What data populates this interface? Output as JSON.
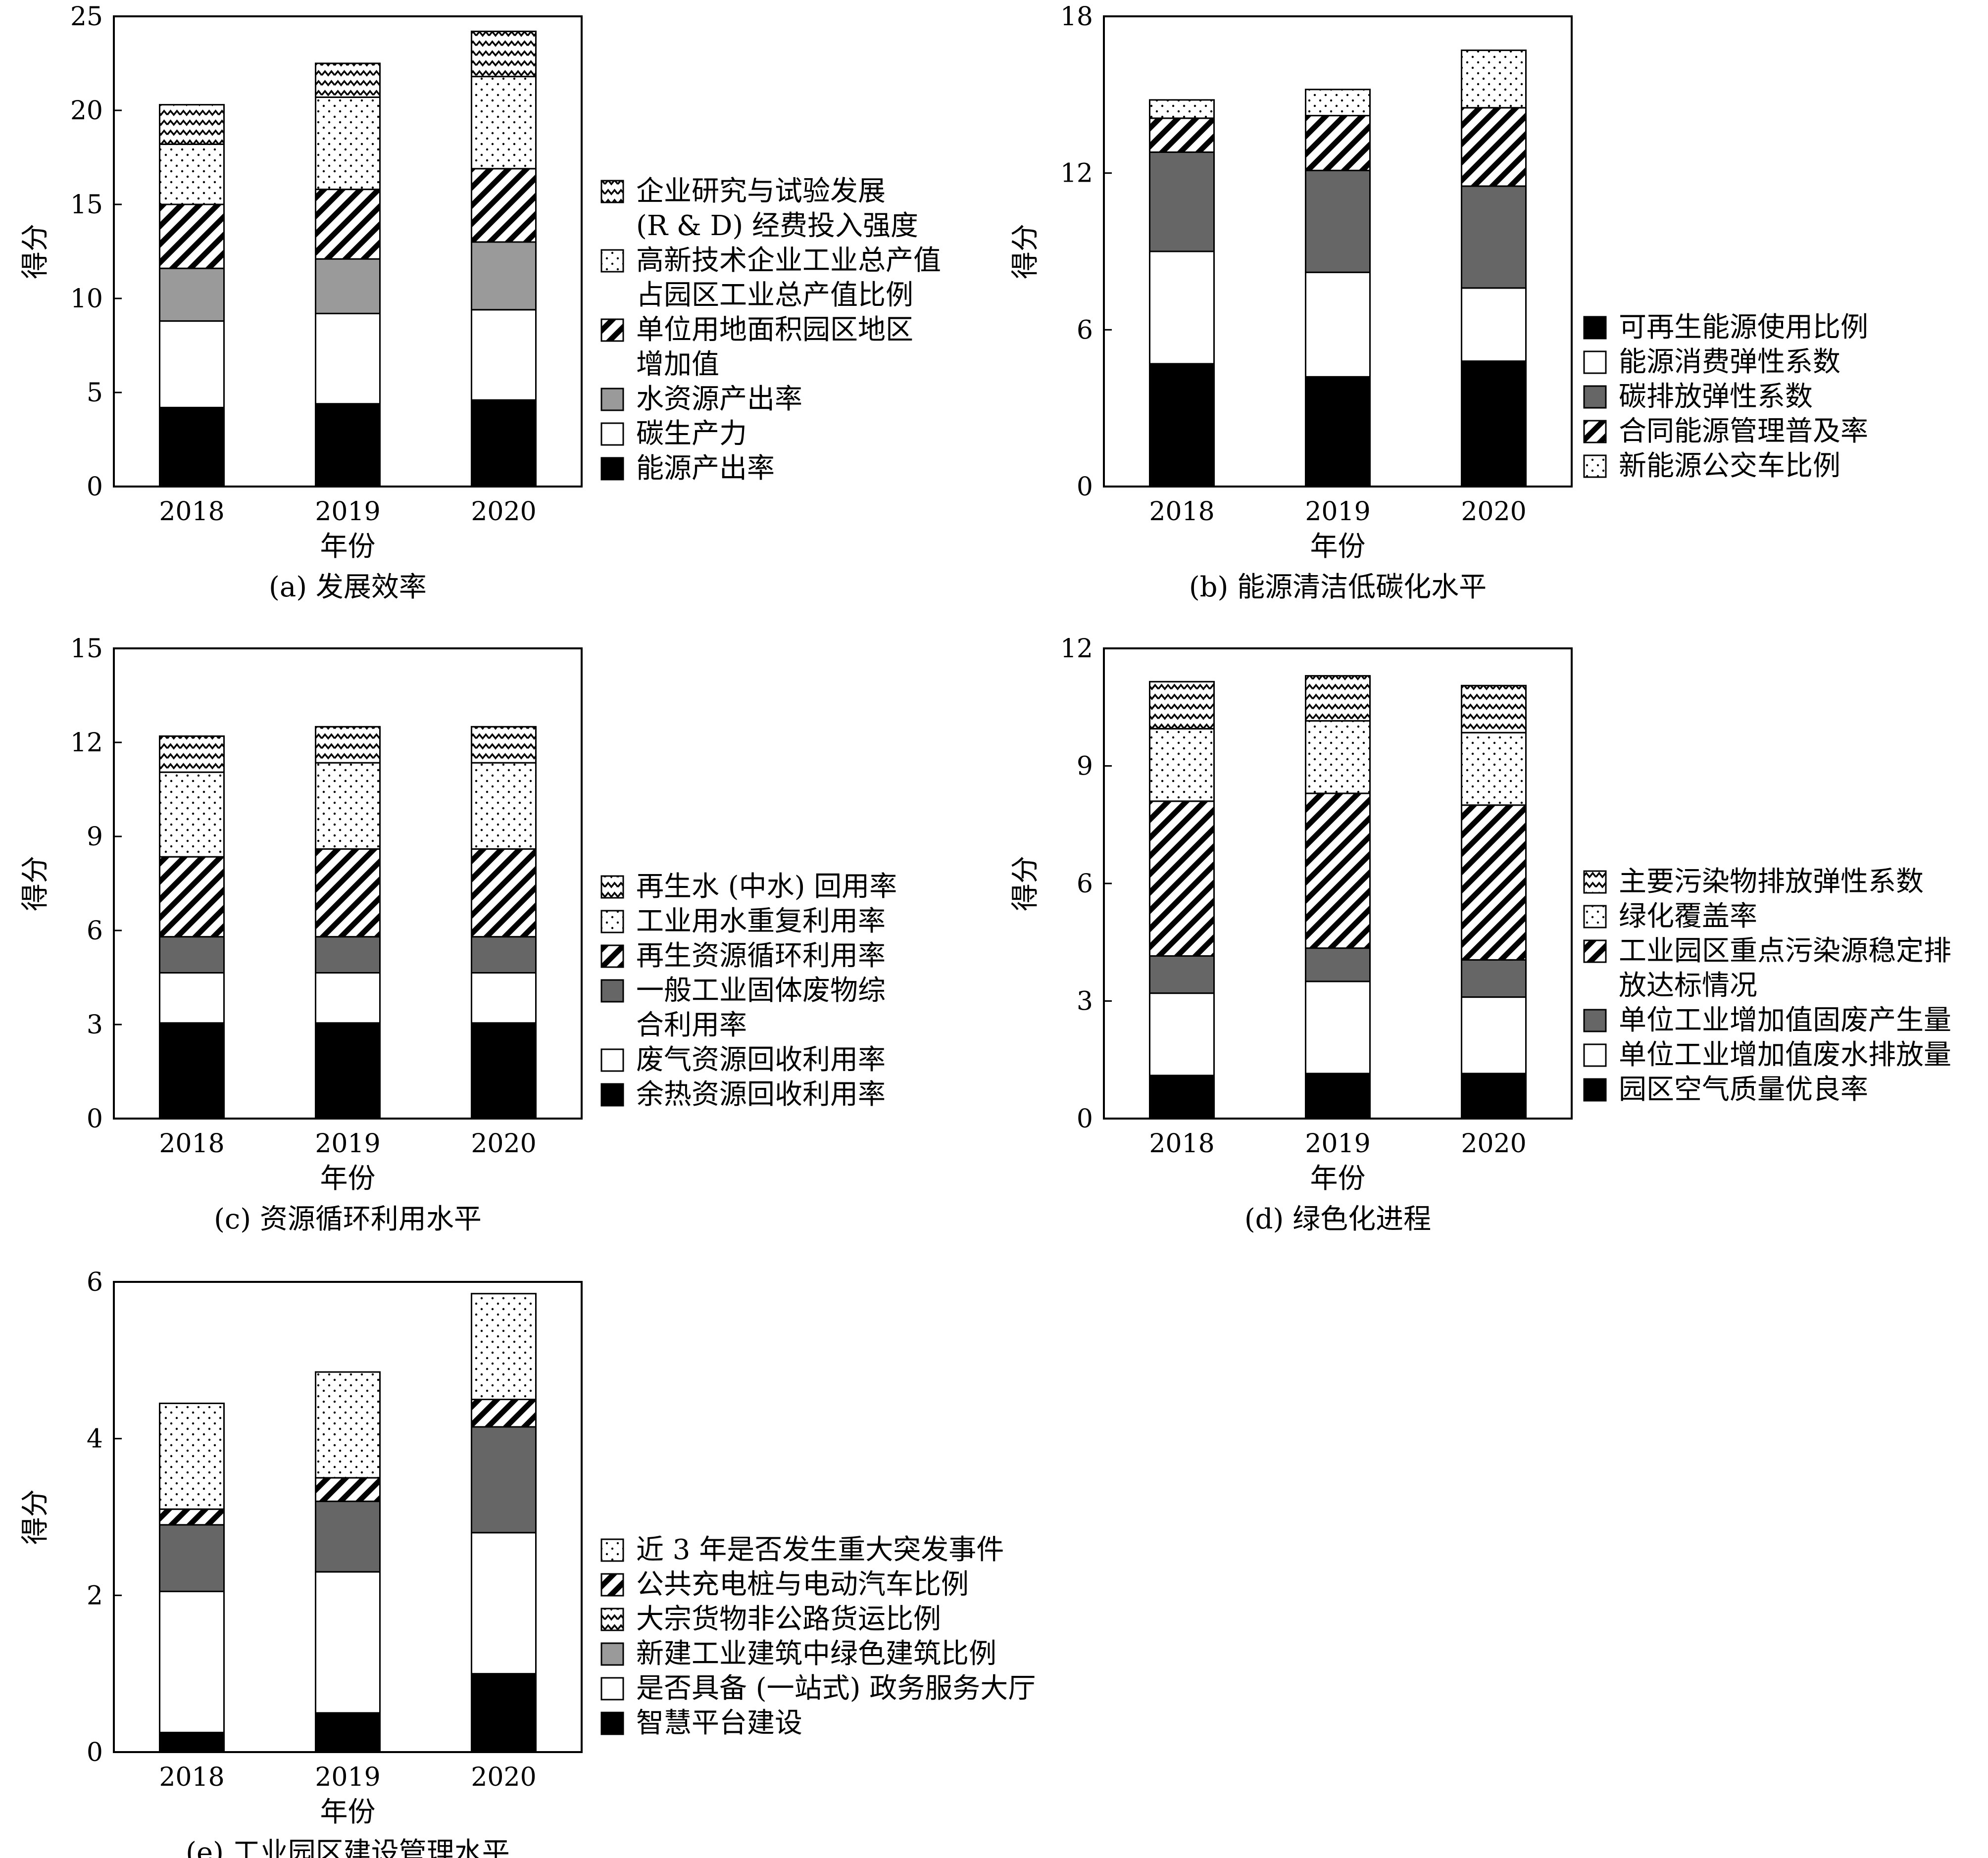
{
  "chart_data": [
    {
      "type": "bar",
      "stacked": true,
      "caption": "(a) 发展效率",
      "xlabel": "年份",
      "ylabel": "得分",
      "ylim": [
        0,
        25
      ],
      "yticks": [
        0,
        5,
        10,
        15,
        20,
        25
      ],
      "categories": [
        "2018",
        "2019",
        "2020"
      ],
      "series": [
        {
          "name": "能源产出率",
          "pattern": "solid-black",
          "values": [
            4.2,
            4.4,
            4.6
          ]
        },
        {
          "name": "碳生产力",
          "pattern": "white",
          "values": [
            4.6,
            4.8,
            4.8
          ]
        },
        {
          "name": "水资源产出率",
          "pattern": "gray",
          "values": [
            2.8,
            2.9,
            3.6
          ]
        },
        {
          "name": "单位用地面积园区地区增加值",
          "pattern": "diagonal",
          "values": [
            3.4,
            3.7,
            3.9
          ]
        },
        {
          "name": "高新技术企业工业总产值占园区工业总产值比例",
          "pattern": "dots",
          "values": [
            3.2,
            4.9,
            4.9
          ]
        },
        {
          "name": "企业研究与试验发展(R & D) 经费投入强度",
          "pattern": "zigzag",
          "values": [
            2.1,
            1.8,
            2.4
          ]
        }
      ],
      "legend_lines": [
        {
          "series": 5,
          "lines": [
            "企业研究与试验发展",
            "(R & D) 经费投入强度"
          ]
        },
        {
          "series": 4,
          "lines": [
            "高新技术企业工业总产值",
            "占园区工业总产值比例"
          ]
        },
        {
          "series": 3,
          "lines": [
            "单位用地面积园区地区",
            "增加值"
          ]
        },
        {
          "series": 2,
          "lines": [
            "水资源产出率"
          ]
        },
        {
          "series": 1,
          "lines": [
            "碳生产力"
          ]
        },
        {
          "series": 0,
          "lines": [
            "能源产出率"
          ]
        }
      ]
    },
    {
      "type": "bar",
      "stacked": true,
      "caption": "(b) 能源清洁低碳化水平",
      "xlabel": "年份",
      "ylabel": "得分",
      "ylim": [
        0,
        18
      ],
      "yticks": [
        0,
        6,
        12,
        18
      ],
      "categories": [
        "2018",
        "2019",
        "2020"
      ],
      "series": [
        {
          "name": "可再生能源使用比例",
          "pattern": "solid-black",
          "values": [
            4.7,
            4.2,
            4.8
          ]
        },
        {
          "name": "能源消费弹性系数",
          "pattern": "white",
          "values": [
            4.3,
            4.0,
            2.8
          ]
        },
        {
          "name": "碳排放弹性系数",
          "pattern": "darkgray",
          "values": [
            3.8,
            3.9,
            3.9
          ]
        },
        {
          "name": "合同能源管理普及率",
          "pattern": "diagonal",
          "values": [
            1.3,
            2.1,
            3.0
          ]
        },
        {
          "name": "新能源公交车比例",
          "pattern": "dots",
          "values": [
            0.7,
            1.0,
            2.2
          ]
        }
      ],
      "legend_lines": [
        {
          "series": 0,
          "lines": [
            "可再生能源使用比例"
          ]
        },
        {
          "series": 1,
          "lines": [
            "能源消费弹性系数"
          ]
        },
        {
          "series": 2,
          "lines": [
            "碳排放弹性系数"
          ]
        },
        {
          "series": 3,
          "lines": [
            "合同能源管理普及率"
          ]
        },
        {
          "series": 4,
          "lines": [
            "新能源公交车比例"
          ]
        }
      ]
    },
    {
      "type": "bar",
      "stacked": true,
      "caption": "(c) 资源循环利用水平",
      "xlabel": "年份",
      "ylabel": "得分",
      "ylim": [
        0,
        15
      ],
      "yticks": [
        0,
        3,
        6,
        9,
        12,
        15
      ],
      "categories": [
        "2018",
        "2019",
        "2020"
      ],
      "series": [
        {
          "name": "余热资源回收利用率",
          "pattern": "solid-black",
          "values": [
            3.05,
            3.05,
            3.05
          ]
        },
        {
          "name": "废气资源回收利用率",
          "pattern": "white",
          "values": [
            1.6,
            1.6,
            1.6
          ]
        },
        {
          "name": "一般工业固体废物综合利用率",
          "pattern": "darkgray",
          "values": [
            1.15,
            1.15,
            1.15
          ]
        },
        {
          "name": "再生资源循环利用率",
          "pattern": "diagonal",
          "values": [
            2.55,
            2.8,
            2.8
          ]
        },
        {
          "name": "工业用水重复利用率",
          "pattern": "dots",
          "values": [
            2.7,
            2.75,
            2.75
          ]
        },
        {
          "name": "再生水 (中水) 回用率",
          "pattern": "zigzag",
          "values": [
            1.15,
            1.15,
            1.15
          ]
        }
      ],
      "legend_lines": [
        {
          "series": 5,
          "lines": [
            "再生水 (中水) 回用率"
          ]
        },
        {
          "series": 4,
          "lines": [
            "工业用水重复利用率"
          ]
        },
        {
          "series": 3,
          "lines": [
            "再生资源循环利用率"
          ]
        },
        {
          "series": 2,
          "lines": [
            "一般工业固体废物综",
            "合利用率"
          ]
        },
        {
          "series": 1,
          "lines": [
            "废气资源回收利用率"
          ]
        },
        {
          "series": 0,
          "lines": [
            "余热资源回收利用率"
          ]
        }
      ]
    },
    {
      "type": "bar",
      "stacked": true,
      "caption": "(d) 绿色化进程",
      "xlabel": "年份",
      "ylabel": "得分",
      "ylim": [
        0,
        12
      ],
      "yticks": [
        0,
        3,
        6,
        9,
        12
      ],
      "categories": [
        "2018",
        "2019",
        "2020"
      ],
      "series": [
        {
          "name": "园区空气质量优良率",
          "pattern": "solid-black",
          "values": [
            1.1,
            1.15,
            1.15
          ]
        },
        {
          "name": "单位工业增加值废水排放量",
          "pattern": "white",
          "values": [
            2.1,
            2.35,
            1.95
          ]
        },
        {
          "name": "单位工业增加值固废产生量",
          "pattern": "darkgray",
          "values": [
            0.95,
            0.85,
            0.95
          ]
        },
        {
          "name": "工业园区重点污染源稳定排放达标情况",
          "pattern": "diagonal",
          "values": [
            3.95,
            3.95,
            3.95
          ]
        },
        {
          "name": "绿化覆盖率",
          "pattern": "dots",
          "values": [
            1.85,
            1.85,
            1.85
          ]
        },
        {
          "name": "主要污染物排放弹性系数",
          "pattern": "zigzag",
          "values": [
            1.2,
            1.15,
            1.2
          ]
        }
      ],
      "legend_lines": [
        {
          "series": 5,
          "lines": [
            "主要污染物排放弹性系数"
          ]
        },
        {
          "series": 4,
          "lines": [
            "绿化覆盖率"
          ]
        },
        {
          "series": 3,
          "lines": [
            "工业园区重点污染源稳定排",
            "放达标情况"
          ]
        },
        {
          "series": 2,
          "lines": [
            "单位工业增加值固废产生量"
          ]
        },
        {
          "series": 1,
          "lines": [
            "单位工业增加值废水排放量"
          ]
        },
        {
          "series": 0,
          "lines": [
            "园区空气质量优良率"
          ]
        }
      ]
    },
    {
      "type": "bar",
      "stacked": true,
      "caption": "(e) 工业园区建设管理水平",
      "xlabel": "年份",
      "ylabel": "得分",
      "ylim": [
        0,
        6
      ],
      "yticks": [
        0,
        2,
        4,
        6
      ],
      "categories": [
        "2018",
        "2019",
        "2020"
      ],
      "series": [
        {
          "name": "智慧平台建设",
          "pattern": "solid-black",
          "values": [
            0.25,
            0.5,
            1.0
          ]
        },
        {
          "name": "是否具备 (一站式) 政务服务大厅",
          "pattern": "white",
          "values": [
            1.8,
            1.8,
            1.8
          ]
        },
        {
          "name": "新建工业建筑中绿色建筑比例",
          "pattern": "darkgray",
          "values": [
            0.85,
            0.9,
            1.35
          ]
        },
        {
          "name": "公共充电桩与电动汽车比例",
          "pattern": "diagonal",
          "values": [
            0.2,
            0.3,
            0.35
          ]
        },
        {
          "name": "近 3 年是否发生重大突发事件",
          "pattern": "dots",
          "values": [
            1.35,
            1.35,
            1.35
          ]
        }
      ],
      "legend_lines": [
        {
          "series": 4,
          "lines": [
            "近 3 年是否发生重大突发事件"
          ]
        },
        {
          "series": 3,
          "lines": [
            "公共充电桩与电动汽车比例"
          ]
        },
        {
          "series": -1,
          "pattern": "zigzag",
          "lines": [
            "大宗货物非公路货运比例"
          ]
        },
        {
          "series": -1,
          "pattern": "gray",
          "lines": [
            "新建工业建筑中绿色建筑比例"
          ]
        },
        {
          "series": 1,
          "lines": [
            "是否具备 (一站式) 政务服务大厅"
          ]
        },
        {
          "series": 0,
          "lines": [
            "智慧平台建设"
          ]
        }
      ]
    }
  ]
}
